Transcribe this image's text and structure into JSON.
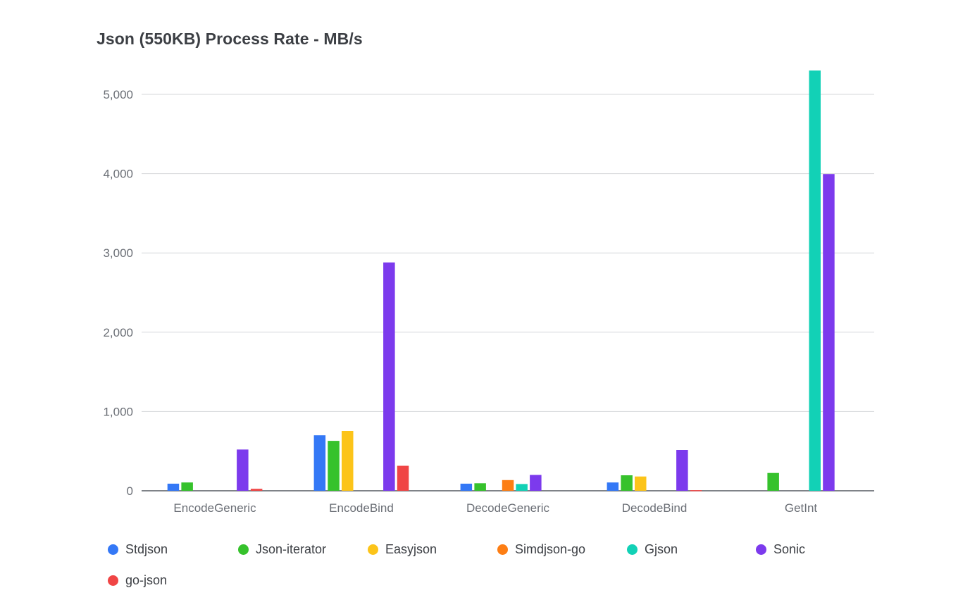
{
  "chart_data": {
    "type": "bar",
    "title": "Json (550KB) Process Rate - MB/s",
    "xlabel": "",
    "ylabel": "",
    "ylim": [
      0,
      5300
    ],
    "yticks": [
      0,
      1000,
      2000,
      3000,
      4000,
      5000
    ],
    "ytick_labels": [
      "0",
      "1,000",
      "2,000",
      "3,000",
      "4,000",
      "5,000"
    ],
    "grid": true,
    "legend_position": "bottom",
    "categories": [
      "EncodeGeneric",
      "EncodeBind",
      "DecodeGeneric",
      "DecodeBind",
      "GetInt"
    ],
    "series": [
      {
        "name": "Stdjson",
        "color": "#3478f6",
        "values": [
          90,
          700,
          90,
          105,
          0
        ]
      },
      {
        "name": "Json-iterator",
        "color": "#36c22c",
        "values": [
          105,
          630,
          95,
          195,
          225
        ]
      },
      {
        "name": "Easyjson",
        "color": "#fcc419",
        "values": [
          0,
          755,
          0,
          180,
          0
        ]
      },
      {
        "name": "Simdjson-go",
        "color": "#fd7e14",
        "values": [
          0,
          0,
          135,
          0,
          0
        ]
      },
      {
        "name": "Gjson",
        "color": "#12d1b6",
        "values": [
          0,
          0,
          85,
          0,
          5300
        ]
      },
      {
        "name": "Sonic",
        "color": "#7c3aed",
        "values": [
          520,
          2880,
          200,
          515,
          3995
        ]
      },
      {
        "name": "go-json",
        "color": "#f04545",
        "values": [
          25,
          315,
          0,
          8,
          0
        ]
      }
    ]
  }
}
